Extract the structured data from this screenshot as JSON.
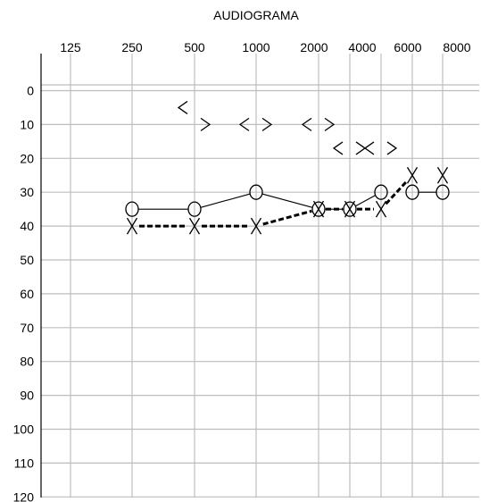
{
  "chart_data": {
    "type": "scatter",
    "title": "AUDIOGRAMA",
    "x_ticks": [
      "125",
      "250",
      "500",
      "1000",
      "2000",
      "4000",
      "6000",
      "8000"
    ],
    "y_ticks": [
      0,
      10,
      20,
      30,
      40,
      50,
      60,
      70,
      80,
      90,
      100,
      110,
      120
    ],
    "ylim": [
      0,
      120
    ],
    "y_inverted": true,
    "grid": true,
    "x_note": "half-octave positions: 3000 and 6000 plotted between labeled frequencies",
    "series": [
      {
        "marker": "O",
        "line": "solid",
        "points": [
          [
            250,
            35
          ],
          [
            500,
            35
          ],
          [
            1000,
            30
          ],
          [
            2000,
            35
          ],
          [
            3000,
            35
          ],
          [
            4000,
            30
          ]
        ]
      },
      {
        "marker": "O",
        "line": "solid",
        "points": [
          [
            6000,
            30
          ],
          [
            8000,
            30
          ]
        ]
      },
      {
        "marker": "X",
        "line": "dashed",
        "points": [
          [
            250,
            40
          ],
          [
            500,
            40
          ],
          [
            1000,
            40
          ],
          [
            2000,
            35
          ],
          [
            3000,
            35
          ],
          [
            4000,
            35
          ],
          [
            6000,
            25
          ]
        ]
      },
      {
        "marker": "X",
        "line": "none",
        "points": [
          [
            8000,
            25
          ]
        ]
      },
      {
        "marker": "<",
        "line": "none",
        "points": [
          [
            500,
            5
          ],
          [
            1000,
            10
          ],
          [
            2000,
            10
          ],
          [
            3000,
            17
          ],
          [
            4000,
            17
          ]
        ]
      },
      {
        "marker": ">",
        "line": "none",
        "points": [
          [
            500,
            10
          ],
          [
            1000,
            10
          ],
          [
            2000,
            10
          ],
          [
            3000,
            17
          ],
          [
            4000,
            17
          ]
        ]
      }
    ]
  }
}
